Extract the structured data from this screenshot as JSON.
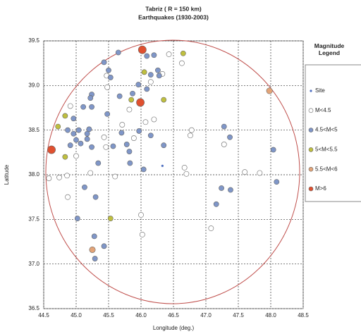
{
  "chart_data": {
    "type": "scatter",
    "title": "Tabriz  ( R = 150 km)",
    "subtitle": "Earthquakes (1930-2003)",
    "x_label": "Longitude (deg.)",
    "y_label": "Latitude",
    "legend_title": "Magnitude Legend",
    "grid": true,
    "xlim": [
      44.5,
      48.5
    ],
    "ylim": [
      36.5,
      39.5
    ],
    "xticks": [
      44.5,
      {
        "value": 45,
        "label": "45.0"
      },
      45.5,
      {
        "value": 46,
        "label": "46.0"
      },
      46.5,
      {
        "value": 47,
        "label": "47.0"
      },
      47.5,
      {
        "value": 48,
        "label": "48.0"
      },
      48.5
    ],
    "yticks": [
      36.5,
      {
        "value": 37,
        "label": "37.0"
      },
      37.5,
      {
        "value": 38,
        "label": "38.0"
      },
      38.5,
      {
        "value": 39,
        "label": "39.0"
      },
      39.5
    ],
    "series": [
      {
        "name": "Site",
        "color": "#4f6fc0",
        "x": [
          46.33
        ],
        "y": [
          38.1
        ]
      },
      {
        "name": "M<4.5",
        "color": "#ffffff",
        "x": [
          45.47,
          45.48,
          45.82,
          46.33,
          46.43,
          46.63,
          46.15,
          45.71,
          45.89,
          46.07,
          46.2,
          45.43,
          45.0,
          44.74,
          44.58,
          44.86,
          44.87,
          45.6,
          45.46,
          46.78,
          46.76,
          47.28,
          46.67,
          46.7,
          47.08,
          47.6,
          47.83,
          46.0,
          46.02,
          44.91,
          45.22
        ],
        "y": [
          39.11,
          38.98,
          38.73,
          39.13,
          39.35,
          39.25,
          39.04,
          38.56,
          38.41,
          38.59,
          38.62,
          38.42,
          38.21,
          37.97,
          37.96,
          37.99,
          37.75,
          37.98,
          38.31,
          38.5,
          38.44,
          38.34,
          38.08,
          38.01,
          37.4,
          38.03,
          38.02,
          37.55,
          37.33,
          38.77,
          38.02
        ]
      },
      {
        "name": "4.5<M<5",
        "color": "#7f96c8",
        "x": [
          45.43,
          45.5,
          45.53,
          45.65,
          46.09,
          46.2,
          46.26,
          46.15,
          46.28,
          45.96,
          46.09,
          45.87,
          45.67,
          45.24,
          45.22,
          45.11,
          44.96,
          45.24,
          45.48,
          44.87,
          44.96,
          45.04,
          45.0,
          45.2,
          45.17,
          45.17,
          45.07,
          45.24,
          45.7,
          45.78,
          45.82,
          45.97,
          46.04,
          45.57,
          45.34,
          45.83,
          44.91,
          45.02,
          45.3,
          45.13,
          45.28,
          45.43,
          45.29,
          47.28,
          47.37,
          47.38,
          47.24,
          47.16,
          48.04,
          48.09,
          46.35,
          46.15
        ],
        "y": [
          39.26,
          39.17,
          39.09,
          39.37,
          39.33,
          39.34,
          39.17,
          39.12,
          39.11,
          39.01,
          38.96,
          38.91,
          38.88,
          38.9,
          38.86,
          38.76,
          38.63,
          38.76,
          38.68,
          38.5,
          38.46,
          38.5,
          38.39,
          38.51,
          38.46,
          38.4,
          38.35,
          38.31,
          38.47,
          38.34,
          38.26,
          38.49,
          38.06,
          38.32,
          38.13,
          38.13,
          38.33,
          37.51,
          37.75,
          37.86,
          37.31,
          37.2,
          37.06,
          38.54,
          38.42,
          37.83,
          37.85,
          37.67,
          38.28,
          37.92,
          38.33,
          38.44
        ]
      },
      {
        "name": "5<M<5.5",
        "color": "#bfbf3f",
        "x": [
          46.65,
          46.05,
          46.35,
          45.85,
          44.83,
          44.72,
          44.83,
          45.53
        ],
        "y": [
          39.36,
          39.15,
          38.84,
          38.84,
          38.66,
          38.54,
          38.2,
          37.51
        ]
      },
      {
        "name": "5.5<M<6",
        "color": "#e3a478",
        "x": [
          47.98,
          45.25
        ],
        "y": [
          38.94,
          37.16
        ]
      },
      {
        "name": "M>6",
        "color": "#e0502f",
        "x": [
          46.02,
          45.99,
          44.62
        ],
        "y": [
          39.4,
          38.81,
          38.28
        ]
      }
    ]
  }
}
